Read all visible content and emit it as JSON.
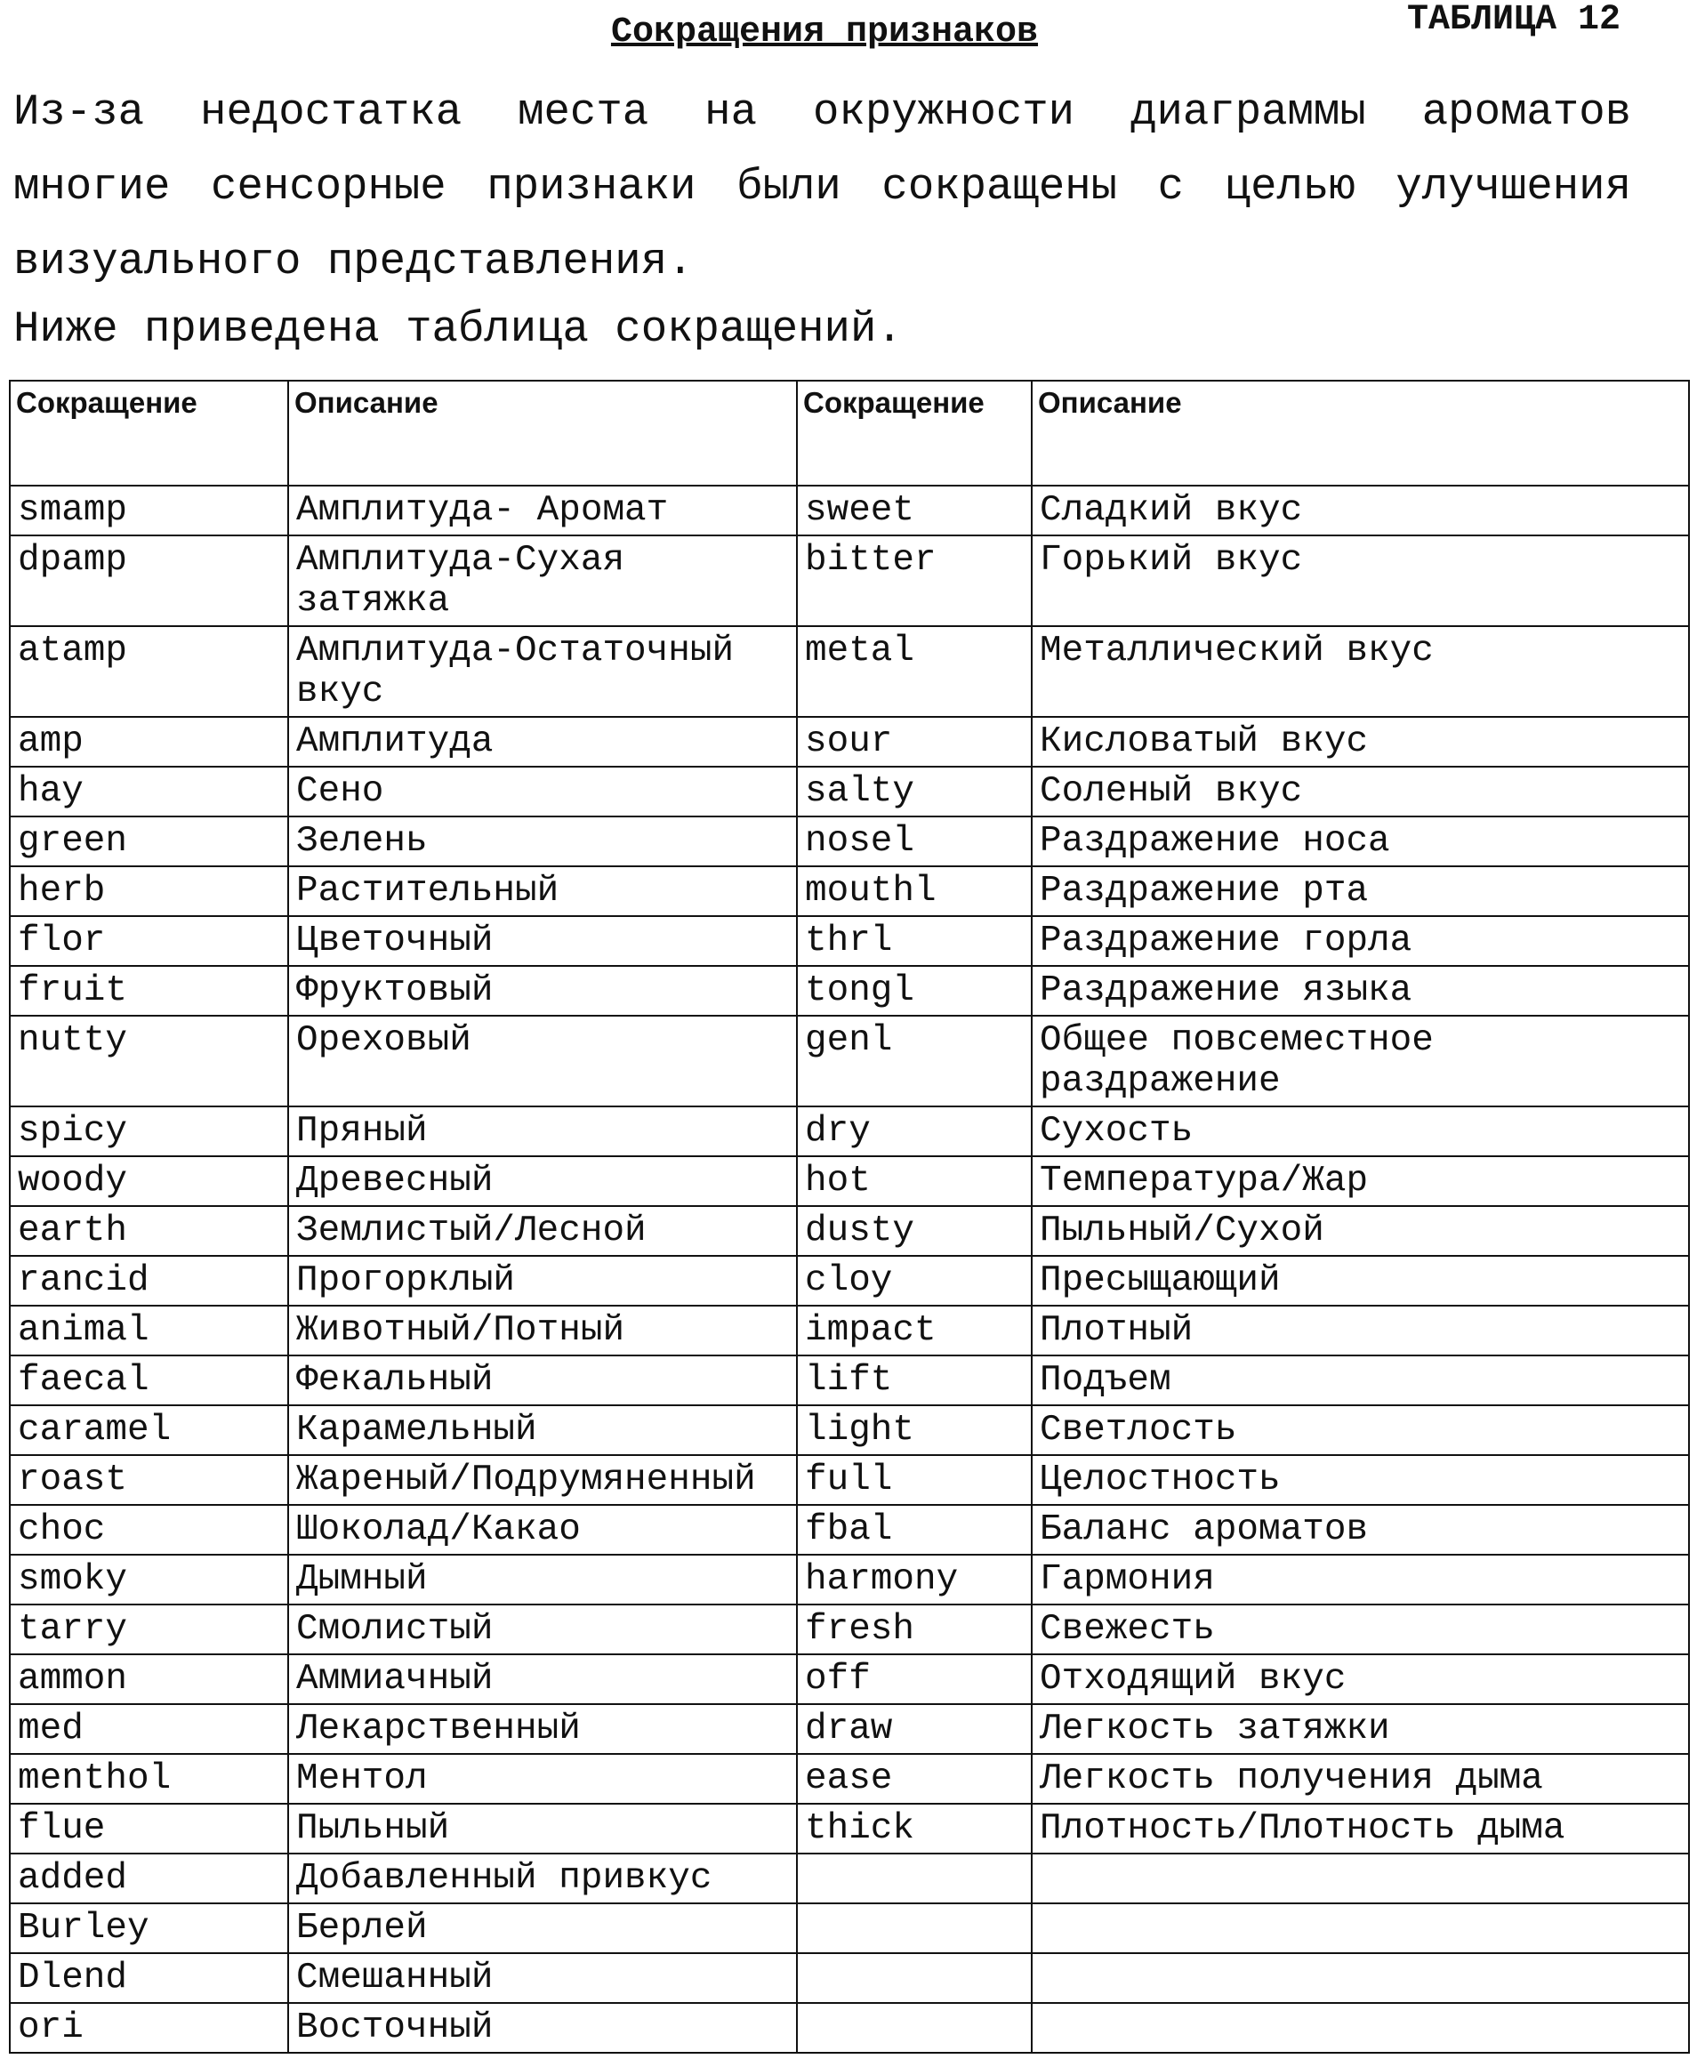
{
  "header": {
    "title": "Сокращения признаков",
    "table_label": "ТАБЛИЦА 12"
  },
  "paragraphs": [
    "Из-за недостатка места на окружности диаграммы ароматов многие  сенсорные признаки были сокращены с целью улучшения визуального представления.",
    "Ниже приведена таблица сокращений."
  ],
  "table": {
    "headers": [
      "Сокращение",
      "Описание",
      "Сокращение",
      "Описание"
    ],
    "rows": [
      [
        "smamp",
        "Амплитуда- Аромат",
        "sweet",
        "Сладкий вкус"
      ],
      [
        "dpamp",
        "Амплитуда-Сухая затяжка",
        "bitter",
        "Горький вкус"
      ],
      [
        "atamp",
        "Амплитуда-Остаточный вкус",
        "metal",
        "Металлический вкус"
      ],
      [
        "amp",
        "Амплитуда",
        "sour",
        "Кисловатый вкус"
      ],
      [
        "hay",
        "Сено",
        "salty",
        "Соленый вкус"
      ],
      [
        "green",
        "Зелень",
        "nosel",
        "Раздражение носа"
      ],
      [
        "herb",
        "Растительный",
        "mouthl",
        "Раздражение рта"
      ],
      [
        "flor",
        "Цветочный",
        "thrl",
        "Раздражение горла"
      ],
      [
        "fruit",
        "Фруктовый",
        "tongl",
        "Раздражение языка"
      ],
      [
        "nutty",
        "Ореховый",
        "genl",
        "Общее повсеместное раздражение"
      ],
      [
        "spicy",
        "Пряный",
        "dry",
        "Сухость"
      ],
      [
        "woody",
        "Древесный",
        "hot",
        "Температура/Жар"
      ],
      [
        "earth",
        "Землистый/Лесной",
        "dusty",
        "Пыльный/Сухой"
      ],
      [
        "rancid",
        "Прогорклый",
        "cloy",
        "Пресыщающий"
      ],
      [
        "animal",
        "Животный/Потный",
        "impact",
        "Плотный"
      ],
      [
        "faecal",
        "Фекальный",
        "lift",
        "Подъем"
      ],
      [
        "caramel",
        "Карамельный",
        "light",
        "Светлость"
      ],
      [
        "roast",
        "Жареный/Подрумяненный",
        "full",
        "Целостность"
      ],
      [
        "choc",
        "Шоколад/Какао",
        "fbal",
        "Баланс ароматов"
      ],
      [
        "smoky",
        "Дымный",
        "harmony",
        "Гармония"
      ],
      [
        "tarry",
        "Смолистый",
        "fresh",
        "Свежесть"
      ],
      [
        "ammon",
        "Аммиачный",
        "off",
        "Отходящий вкус"
      ],
      [
        "med",
        "Лекарственный",
        "draw",
        "Легкость затяжки"
      ],
      [
        "menthol",
        "Ментол",
        "ease",
        "Легкость получения дыма"
      ],
      [
        "flue",
        "Пыльный",
        "thick",
        "Плотность/Плотность дыма"
      ],
      [
        "added",
        "Добавленный привкус"
      ],
      [
        "Burley",
        "Берлей"
      ],
      [
        "Dlend",
        "Смешанный"
      ],
      [
        "ori",
        "Восточный"
      ]
    ]
  }
}
